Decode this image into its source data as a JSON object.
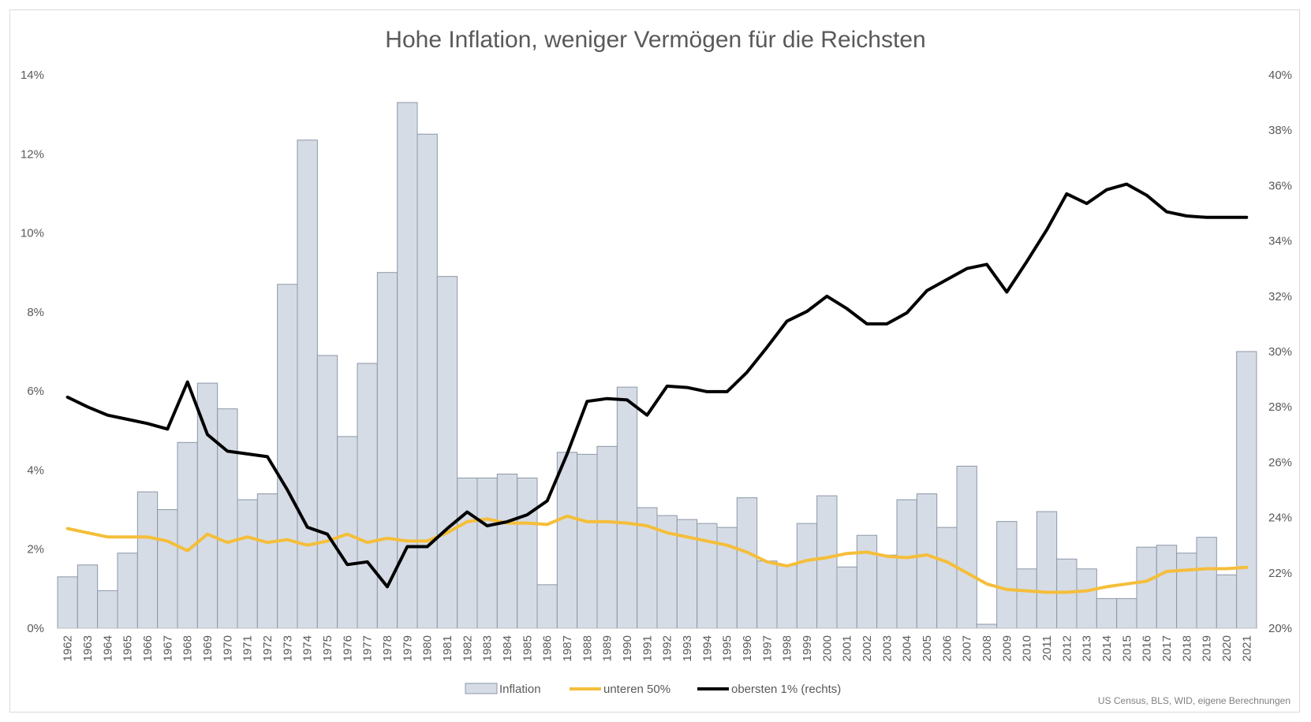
{
  "chart_data": {
    "type": "bar",
    "title": "Hohe Inflation, weniger Vermögen für die Reichsten",
    "source_note": "US Census, BLS, WID, eigene Berechnungen",
    "categories": [
      "1962",
      "1963",
      "1964",
      "1965",
      "1966",
      "1967",
      "1968",
      "1969",
      "1970",
      "1971",
      "1972",
      "1973",
      "1974",
      "1975",
      "1976",
      "1977",
      "1978",
      "1979",
      "1980",
      "1981",
      "1982",
      "1983",
      "1984",
      "1985",
      "1986",
      "1987",
      "1988",
      "1989",
      "1990",
      "1991",
      "1992",
      "1993",
      "1994",
      "1995",
      "1996",
      "1997",
      "1998",
      "1999",
      "2000",
      "2001",
      "2002",
      "2003",
      "2004",
      "2005",
      "2006",
      "2007",
      "2008",
      "2009",
      "2010",
      "2011",
      "2012",
      "2013",
      "2014",
      "2015",
      "2016",
      "2017",
      "2018",
      "2019",
      "2020",
      "2021"
    ],
    "y_left": {
      "min": 0,
      "max": 14,
      "ticks": [
        0,
        2,
        4,
        6,
        8,
        10,
        12,
        14
      ],
      "tick_labels": [
        "0%",
        "2%",
        "4%",
        "6%",
        "8%",
        "10%",
        "12%",
        "14%"
      ]
    },
    "y_right": {
      "min": 20,
      "max": 40,
      "ticks": [
        20,
        22,
        24,
        26,
        28,
        30,
        32,
        34,
        36,
        38,
        40
      ],
      "tick_labels": [
        "20%",
        "22%",
        "24%",
        "26%",
        "28%",
        "30%",
        "32%",
        "34%",
        "36%",
        "38%",
        "40%"
      ]
    },
    "grid": false,
    "legend_position": "bottom",
    "series": [
      {
        "name": "Inflation",
        "type": "bar",
        "axis": "left",
        "color": "#d6dce5",
        "stroke": "#8c97a7",
        "values": [
          1.3,
          1.6,
          0.95,
          1.9,
          3.45,
          3.0,
          4.7,
          6.2,
          5.55,
          3.25,
          3.4,
          8.7,
          12.35,
          6.9,
          4.85,
          6.7,
          9.0,
          13.3,
          12.5,
          8.9,
          3.8,
          3.8,
          3.9,
          3.8,
          1.1,
          4.45,
          4.4,
          4.6,
          6.1,
          3.05,
          2.85,
          2.75,
          2.65,
          2.55,
          3.3,
          1.7,
          1.6,
          2.65,
          3.35,
          1.55,
          2.35,
          1.85,
          3.25,
          3.4,
          2.55,
          4.1,
          0.1,
          2.7,
          1.5,
          2.95,
          1.75,
          1.5,
          0.75,
          0.75,
          2.05,
          2.1,
          1.9,
          2.3,
          1.35,
          7.0
        ]
      },
      {
        "name": "unteren 50%",
        "type": "line",
        "axis": "right",
        "color": "#f5be3a",
        "values": [
          23.6,
          23.45,
          23.3,
          23.3,
          23.3,
          23.15,
          22.8,
          23.4,
          23.1,
          23.3,
          23.1,
          23.2,
          23.0,
          23.15,
          23.4,
          23.1,
          23.25,
          23.15,
          23.15,
          23.45,
          23.85,
          23.95,
          23.8,
          23.8,
          23.75,
          24.05,
          23.85,
          23.85,
          23.8,
          23.7,
          23.45,
          23.3,
          23.15,
          23.0,
          22.75,
          22.4,
          22.25,
          22.45,
          22.55,
          22.7,
          22.75,
          22.6,
          22.55,
          22.65,
          22.4,
          22.0,
          21.6,
          21.4,
          21.35,
          21.3,
          21.3,
          21.35,
          21.5,
          21.6,
          21.7,
          22.05,
          22.1,
          22.15,
          22.15,
          22.2
        ]
      },
      {
        "name": "obersten 1% (rechts)",
        "type": "line",
        "axis": "right",
        "color": "#000000",
        "values": [
          28.35,
          28.0,
          27.7,
          27.55,
          27.4,
          27.2,
          28.9,
          27.0,
          26.4,
          26.3,
          26.2,
          25.0,
          23.65,
          23.4,
          22.3,
          22.4,
          21.5,
          22.95,
          22.95,
          23.6,
          24.2,
          23.7,
          23.85,
          24.1,
          24.6,
          26.3,
          28.2,
          28.3,
          28.25,
          27.7,
          28.75,
          28.7,
          28.55,
          28.55,
          29.25,
          30.15,
          31.1,
          31.45,
          32.0,
          31.55,
          31.0,
          31.0,
          31.4,
          32.2,
          32.6,
          33.0,
          33.15,
          32.15,
          33.25,
          34.4,
          35.7,
          35.35,
          35.85,
          36.05,
          35.65,
          35.05,
          34.9,
          34.85,
          34.85,
          34.85
        ]
      }
    ]
  }
}
